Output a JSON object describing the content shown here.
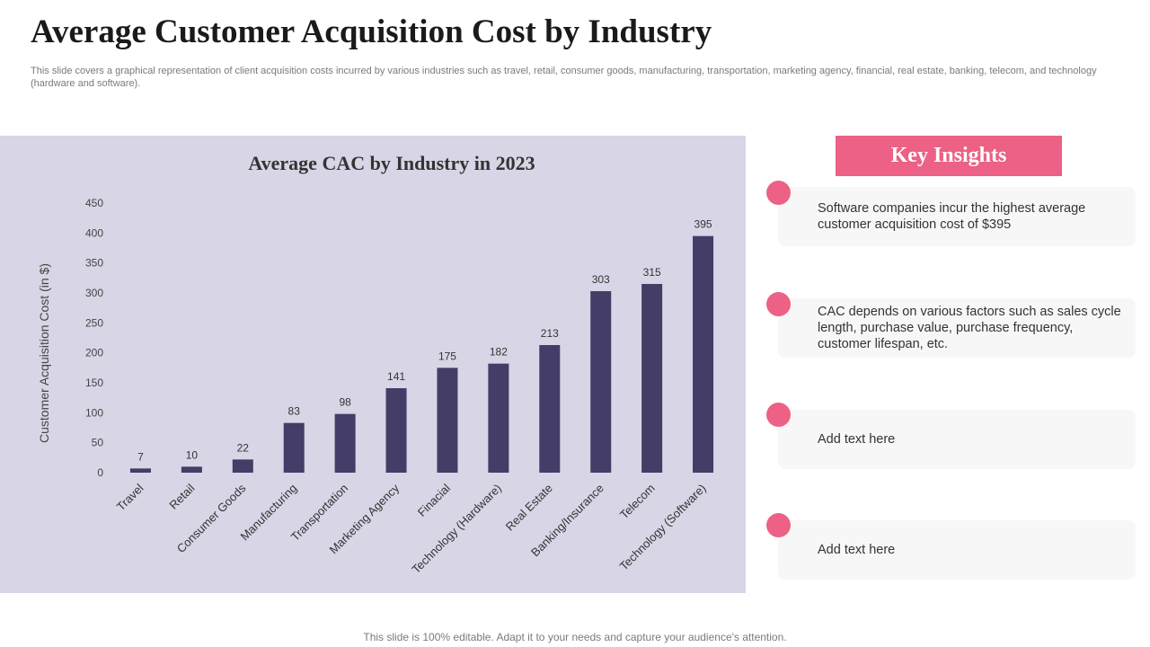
{
  "page": {
    "title": "Average Customer Acquisition Cost by Industry",
    "subtitle": "This slide covers a graphical representation of client acquisition costs incurred by various industries such as travel, retail, consumer goods, manufacturing, transportation, marketing agency, financial, real estate, banking, telecom, and technology (hardware and software).",
    "footer": "This slide is 100% editable. Adapt it to your needs and capture your audience's attention."
  },
  "insights": {
    "header": "Key Insights",
    "items": [
      "Software companies incur the highest average customer acquisition cost of $395",
      "CAC depends on various factors such as sales cycle length, purchase value, purchase frequency, customer lifespan, etc.",
      "Add text here",
      "Add text here"
    ]
  },
  "colors": {
    "accent": "#ec6185",
    "bar": "#433d67",
    "panel": "#d8d5e6"
  },
  "chart_data": {
    "type": "bar",
    "title": "Average CAC by Industry in 2023",
    "xlabel": "",
    "ylabel": "Customer Acquisition Cost (in $)",
    "categories": [
      "Travel",
      "Retail",
      "Consumer Goods",
      "Manufacturing",
      "Transportation",
      "Marketing Agency",
      "Finacial",
      "Technology (Hardware)",
      "Real Estate",
      "Banking/Insurance",
      "Telecom",
      "Technology (Software)"
    ],
    "values": [
      7,
      10,
      22,
      83,
      98,
      141,
      175,
      182,
      213,
      303,
      315,
      395
    ],
    "yticks": [
      0,
      50,
      100,
      150,
      200,
      250,
      300,
      350,
      400,
      450
    ],
    "ylim": [
      0,
      450
    ],
    "grid": false,
    "data_labels": true
  }
}
